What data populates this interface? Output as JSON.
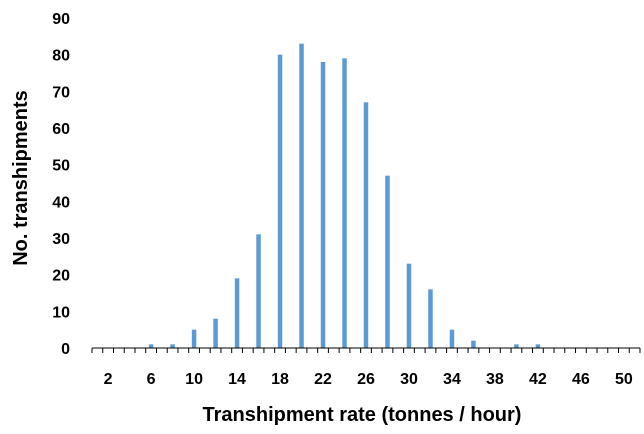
{
  "chart_data": {
    "type": "bar",
    "title": "",
    "xlabel": "Transhipment rate (tonnes / hour)",
    "ylabel": "No. transhipments",
    "ylim": [
      0,
      90
    ],
    "y_ticks": [
      0,
      10,
      20,
      30,
      40,
      50,
      60,
      70,
      80,
      90
    ],
    "x_tick_labels": [
      "2",
      "6",
      "10",
      "14",
      "18",
      "22",
      "26",
      "30",
      "34",
      "38",
      "42",
      "46",
      "50"
    ],
    "grid": false,
    "bar_color": "#5B9BD5",
    "categories": [
      1,
      2,
      3,
      4,
      5,
      6,
      7,
      8,
      9,
      10,
      11,
      12,
      13,
      14,
      15,
      16,
      17,
      18,
      19,
      20,
      21,
      22,
      23,
      24,
      25,
      26,
      27,
      28,
      29,
      30,
      31,
      32,
      33,
      34,
      35,
      36,
      37,
      38,
      39,
      40,
      41,
      42,
      43,
      44,
      45,
      46,
      47,
      48,
      49,
      50,
      51
    ],
    "values": [
      0,
      0,
      0,
      0,
      0,
      1,
      0,
      1,
      0,
      5,
      0,
      8,
      0,
      19,
      0,
      31,
      0,
      80,
      0,
      83,
      0,
      78,
      0,
      79,
      0,
      67,
      0,
      47,
      0,
      23,
      0,
      16,
      0,
      5,
      0,
      2,
      0,
      0,
      0,
      1,
      0,
      1,
      0,
      0,
      0,
      0,
      0,
      0,
      0,
      0,
      0
    ]
  }
}
